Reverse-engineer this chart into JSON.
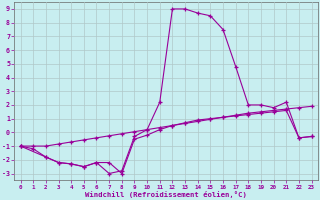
{
  "xlabel": "Windchill (Refroidissement éolien,°C)",
  "background_color": "#c8eef0",
  "grid_color": "#b0c8c8",
  "line_color": "#990099",
  "spine_color": "#666666",
  "xlim": [
    -0.5,
    23.5
  ],
  "ylim": [
    -3.5,
    9.5
  ],
  "yticks": [
    -3,
    -2,
    -1,
    0,
    1,
    2,
    3,
    4,
    5,
    6,
    7,
    8,
    9
  ],
  "xticks": [
    0,
    1,
    2,
    3,
    4,
    5,
    6,
    7,
    8,
    9,
    10,
    11,
    12,
    13,
    14,
    15,
    16,
    17,
    18,
    19,
    20,
    21,
    22,
    23
  ],
  "line1_x": [
    0,
    1,
    2,
    3,
    4,
    5,
    6,
    7,
    8,
    9,
    10,
    11,
    12,
    13,
    14,
    15,
    16,
    17,
    18,
    19,
    20,
    21,
    22,
    23
  ],
  "line1_y": [
    -1.0,
    -1.2,
    -1.8,
    -2.2,
    -2.3,
    -2.5,
    -2.2,
    -3.0,
    -2.8,
    -0.3,
    0.2,
    2.2,
    9.0,
    9.0,
    8.7,
    8.5,
    7.5,
    4.8,
    2.0,
    2.0,
    1.8,
    2.2,
    -0.4,
    -0.3
  ],
  "line2_x": [
    0,
    1,
    2,
    3,
    4,
    5,
    6,
    7,
    8,
    9,
    10,
    11,
    12,
    13,
    14,
    15,
    16,
    17,
    18,
    19,
    20,
    21,
    22,
    23
  ],
  "line2_y": [
    -1.0,
    -1.0,
    -1.0,
    -0.85,
    -0.7,
    -0.55,
    -0.4,
    -0.25,
    -0.1,
    0.05,
    0.2,
    0.35,
    0.5,
    0.65,
    0.8,
    0.95,
    1.1,
    1.25,
    1.4,
    1.5,
    1.6,
    1.7,
    1.8,
    1.9
  ],
  "line3_x": [
    0,
    2,
    3,
    4,
    5,
    6,
    7,
    8,
    9,
    10,
    11,
    12,
    13,
    14,
    15,
    16,
    17,
    18,
    19,
    20,
    21,
    22,
    23
  ],
  "line3_y": [
    -1.0,
    -1.8,
    -2.2,
    -2.3,
    -2.5,
    -2.2,
    -2.2,
    -3.0,
    -0.5,
    -0.2,
    0.2,
    0.5,
    0.7,
    0.9,
    1.0,
    1.1,
    1.2,
    1.3,
    1.4,
    1.5,
    1.6,
    -0.4,
    -0.3
  ]
}
